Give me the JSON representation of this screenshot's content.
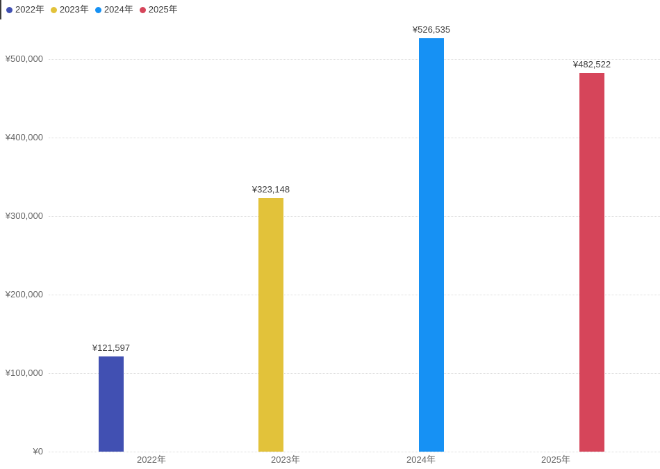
{
  "chart_data": {
    "type": "bar",
    "title": "",
    "categories": [
      "2022年",
      "2023年",
      "2024年",
      "2025年"
    ],
    "series": [
      {
        "name": "2022年",
        "color": "#4150b2",
        "values": [
          121597,
          null,
          null,
          null
        ]
      },
      {
        "name": "2023年",
        "color": "#e2c23a",
        "values": [
          null,
          323148,
          null,
          null
        ]
      },
      {
        "name": "2024年",
        "color": "#1691f4",
        "values": [
          null,
          null,
          526535,
          null
        ]
      },
      {
        "name": "2025年",
        "color": "#d6455a",
        "values": [
          null,
          null,
          null,
          482522
        ]
      }
    ],
    "data_labels": [
      "¥121,597",
      "¥323,148",
      "¥526,535",
      "¥482,522"
    ],
    "y_axis": {
      "tick_labels": [
        "¥0",
        "¥100,000",
        "¥200,000",
        "¥300,000",
        "¥400,000",
        "¥500,000"
      ],
      "tick_values": [
        0,
        100000,
        200000,
        300000,
        400000,
        500000
      ],
      "range": [
        0,
        575000
      ],
      "currency_prefix": "¥"
    },
    "x_axis": {
      "tick_labels": [
        "2022年",
        "2023年",
        "2024年",
        "2025年"
      ]
    },
    "grid": "horizontal-dotted",
    "legend_position": "top-left",
    "colors": {
      "grid_line": "#dcdcdc",
      "axis_text": "#666666",
      "data_label_text": "#404040",
      "legend_text": "#3b3b3b",
      "background": "#ffffff"
    }
  }
}
